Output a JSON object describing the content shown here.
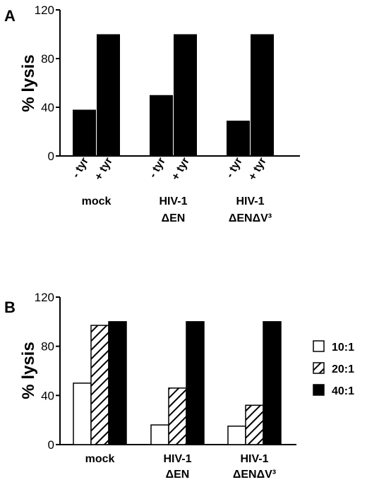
{
  "chart_data": [
    {
      "panel": "A",
      "type": "bar",
      "ylabel": "% lysis",
      "ylim": [
        0,
        120
      ],
      "yticks": [
        0,
        40,
        80,
        120
      ],
      "groups": [
        {
          "label_lines": [
            "mock"
          ],
          "bars": [
            {
              "label": "- tyr",
              "value": 38
            },
            {
              "label": "+ tyr",
              "value": 100
            }
          ]
        },
        {
          "label_lines": [
            "HIV-1",
            "ΔEN"
          ],
          "bars": [
            {
              "label": "- tyr",
              "value": 50
            },
            {
              "label": "+ tyr",
              "value": 100
            }
          ]
        },
        {
          "label_lines": [
            "HIV-1",
            "ΔENΔV³"
          ],
          "bars": [
            {
              "label": "- tyr",
              "value": 29
            },
            {
              "label": "+ tyr",
              "value": 100
            }
          ]
        }
      ],
      "colors": {
        "bar": "#000000"
      }
    },
    {
      "panel": "B",
      "type": "bar",
      "ylabel": "% lysis",
      "ylim": [
        0,
        120
      ],
      "yticks": [
        0,
        40,
        80,
        120
      ],
      "categories": [
        "mock",
        "HIV-1 ΔEN",
        "HIV-1 ΔENΔV³"
      ],
      "category_lines": [
        [
          "mock"
        ],
        [
          "HIV-1",
          "ΔEN"
        ],
        [
          "HIV-1",
          "ΔENΔV³"
        ]
      ],
      "series": [
        {
          "name": "10:1",
          "pattern": "open",
          "values": [
            50,
            16,
            15
          ]
        },
        {
          "name": "20:1",
          "pattern": "hatched",
          "values": [
            97,
            46,
            32
          ]
        },
        {
          "name": "40:1",
          "pattern": "solid",
          "values": [
            100,
            100,
            100
          ]
        }
      ],
      "legend": "right"
    }
  ]
}
